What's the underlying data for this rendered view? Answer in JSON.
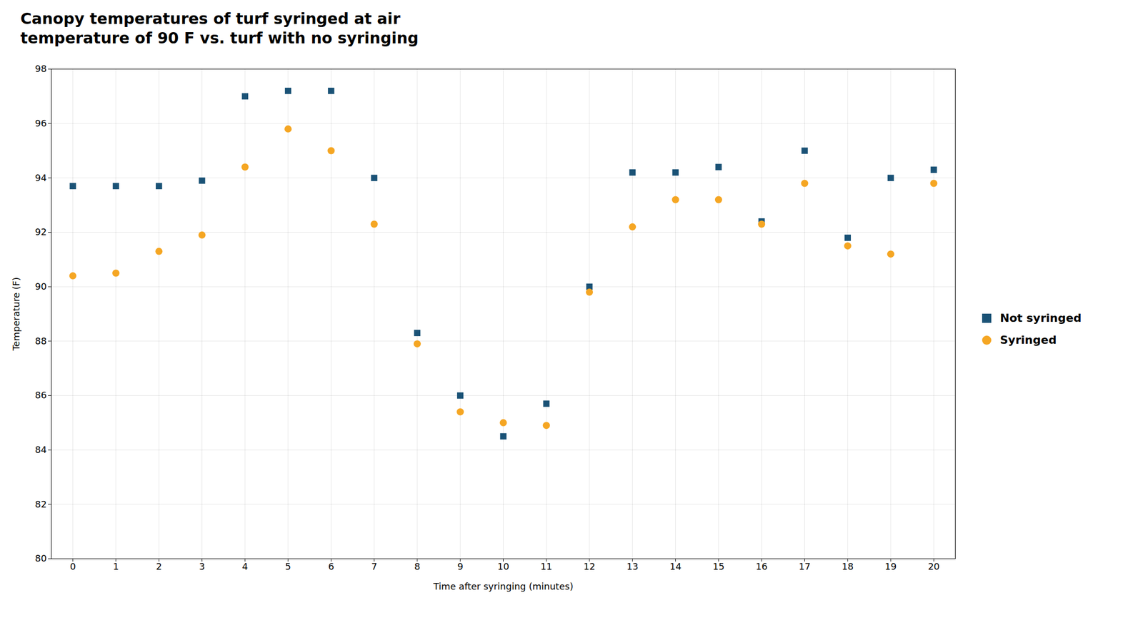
{
  "chart_data": {
    "type": "scatter",
    "title": "Canopy temperatures of turf syringed at air\ntemperature of 90 F vs. turf with no syringing",
    "xlabel": "Time after syringing (minutes)",
    "ylabel": "Temperature (F)",
    "x": [
      0,
      1,
      2,
      3,
      4,
      5,
      6,
      7,
      8,
      9,
      10,
      11,
      12,
      13,
      14,
      15,
      16,
      17,
      18,
      19,
      20
    ],
    "series": [
      {
        "name": "Not syringed",
        "color": "#1a5276",
        "marker": "square",
        "values": [
          93.7,
          93.7,
          93.7,
          93.9,
          97.0,
          97.2,
          97.2,
          94.0,
          88.3,
          86.0,
          84.5,
          85.7,
          90.0,
          94.2,
          94.2,
          94.4,
          92.4,
          95.0,
          91.8,
          94.0,
          94.3
        ]
      },
      {
        "name": "Syringed",
        "color": "#f5a623",
        "marker": "circle",
        "values": [
          90.4,
          90.5,
          91.3,
          91.9,
          94.4,
          95.8,
          95.0,
          92.3,
          87.9,
          85.4,
          85.0,
          84.9,
          89.8,
          92.2,
          93.2,
          93.2,
          92.3,
          93.8,
          91.5,
          91.2,
          93.8
        ]
      }
    ],
    "xlim": [
      -0.5,
      20.5
    ],
    "xticks": [
      0,
      1,
      2,
      3,
      4,
      5,
      6,
      7,
      8,
      9,
      10,
      11,
      12,
      13,
      14,
      15,
      16,
      17,
      18,
      19,
      20
    ],
    "ylim": [
      80,
      98
    ],
    "yticks": [
      80,
      82,
      84,
      86,
      88,
      90,
      92,
      94,
      96,
      98
    ],
    "grid": true,
    "legend": "right"
  }
}
